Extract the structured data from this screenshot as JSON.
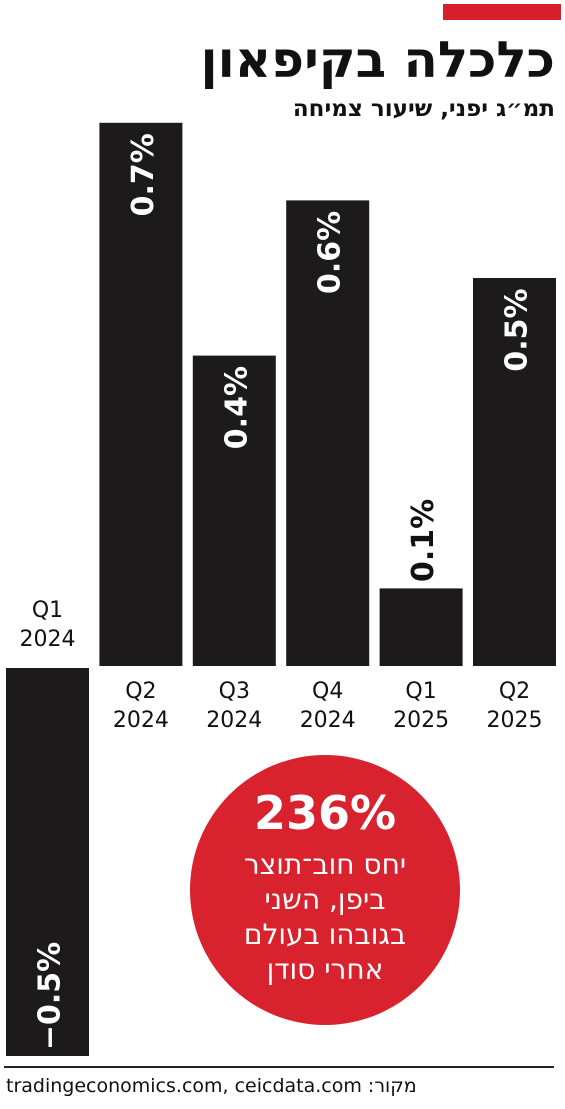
{
  "header": {
    "title": "כלכלה בקיפאון",
    "subtitle": "תמ״ג יפני, שיעור צמיחה"
  },
  "colors": {
    "accent": "#d61f2a",
    "bar": "#1c1a1a",
    "badge": "#d8222e"
  },
  "chart_data": {
    "type": "bar",
    "categories": [
      [
        "Q1",
        "2024"
      ],
      [
        "Q2",
        "2024"
      ],
      [
        "Q3",
        "2024"
      ],
      [
        "Q4",
        "2024"
      ],
      [
        "Q1",
        "2025"
      ],
      [
        "Q2",
        "2025"
      ]
    ],
    "values": [
      -0.5,
      0.7,
      0.4,
      0.6,
      0.1,
      0.5
    ],
    "value_labels": [
      "−0.5%",
      "0.7%",
      "0.4%",
      "0.6%",
      "0.1%",
      "0.5%"
    ],
    "title": "כלכלה בקיפאון",
    "subtitle": "תמ״ג יפני, שיעור צמיחה",
    "xlabel": "",
    "ylabel": "",
    "ylim": [
      -0.5,
      0.7
    ],
    "grid": false,
    "legend": "none"
  },
  "callout": {
    "value": "236%",
    "lines": [
      "יחס חוב־תוצר",
      "ביפן, השני",
      "בגובהו בעולם",
      "אחרי סודן"
    ]
  },
  "source": {
    "text": "tradingeconomics.com, ceicdata.com :מקור"
  }
}
